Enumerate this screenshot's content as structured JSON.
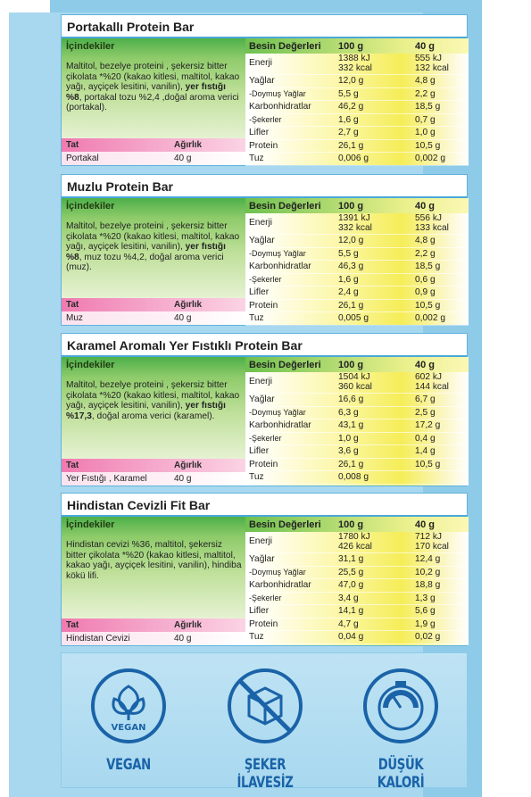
{
  "headers": {
    "nutrition": "Besin Değerleri",
    "g100": "100 g",
    "g40": "40 g",
    "ingredients": "İçindekiler",
    "tat": "Tat",
    "weight": "Ağırlık"
  },
  "products": [
    {
      "title": "Portakallı Protein Bar",
      "ingredients_plain": "Maltitol, bezelye proteini , şekersiz bitter çikolata *%20 (kakao kitlesi, maltitol, kakao yağı, ayçiçek lesitini, vanilin), ",
      "ingredients_bold": "yer fıstığı %8",
      "ingredients_tail": ",  portakal tozu %2,4 ,doğal aroma verici (portakal).",
      "flavor": "Portakal",
      "weight": "40 g",
      "energy": {
        "label": "Enerji",
        "kj100": "1388 kJ",
        "kcal100": "332 kcal",
        "kj40": "555 kJ",
        "kcal40": "132 kcal"
      },
      "rows": [
        {
          "label": "Yağlar",
          "v100": "12,0 g",
          "v40": "4,8 g"
        },
        {
          "label": "-Doymuş Yağlar",
          "v100": "5,5 g",
          "v40": "2,2 g"
        },
        {
          "label": "Karbonhidratlar",
          "v100": "46,2 g",
          "v40": "18,5 g"
        },
        {
          "label": "-Şekerler",
          "v100": "1,6 g",
          "v40": "0,7 g"
        },
        {
          "label": "Lifler",
          "v100": "2,7 g",
          "v40": "1,0 g"
        },
        {
          "label": "Protein",
          "v100": "26,1 g",
          "v40": "10,5 g"
        },
        {
          "label": "Tuz",
          "v100": "0,006 g",
          "v40": "0,002 g"
        }
      ]
    },
    {
      "title": "Muzlu Protein Bar",
      "ingredients_plain": "Maltitol, bezelye proteini , şekersiz bitter çikolata *%20 (kakao kitlesi, maltitol, kakao yağı, ayçiçek lesitini, vanilin), ",
      "ingredients_bold": "yer fıstığı %8",
      "ingredients_tail": ",  muz tozu %4,2, doğal aroma verici (muz).",
      "flavor": "Muz",
      "weight": "40 g",
      "energy": {
        "label": "Enerji",
        "kj100": "1391 kJ",
        "kcal100": "332 kcal",
        "kj40": "556 kJ",
        "kcal40": "133 kcal"
      },
      "rows": [
        {
          "label": "Yağlar",
          "v100": "12,0 g",
          "v40": "4,8 g"
        },
        {
          "label": "-Doymuş Yağlar",
          "v100": "5,5 g",
          "v40": "2,2 g"
        },
        {
          "label": "Karbonhidratlar",
          "v100": "46,3 g",
          "v40": "18,5 g"
        },
        {
          "label": "-Şekerler",
          "v100": "1,6 g",
          "v40": "0,6 g"
        },
        {
          "label": "Lifler",
          "v100": "2,4 g",
          "v40": "0,9 g"
        },
        {
          "label": "Protein",
          "v100": "26,1 g",
          "v40": "10,5 g"
        },
        {
          "label": "Tuz",
          "v100": "0,005 g",
          "v40": "0,002 g"
        }
      ]
    },
    {
      "title": "Karamel Aromalı Yer Fıstıklı Protein Bar",
      "ingredients_plain": "Maltitol, bezelye proteini , şekersiz bitter çikolata *%20 (kakao kitlesi, maltitol, kakao yağı, ayçiçek lesitini, vanilin), ",
      "ingredients_bold": "yer fıstığı %17,3",
      "ingredients_tail": ", doğal aroma verici (karamel).",
      "flavor": "Yer Fıstığı , Karamel",
      "weight": "40 g",
      "energy": {
        "label": "Enerji",
        "kj100": "1504 kJ",
        "kcal100": "360 kcal",
        "kj40": "602 kJ",
        "kcal40": "144 kcal"
      },
      "rows": [
        {
          "label": "Yağlar",
          "v100": "16,6 g",
          "v40": "6,7 g"
        },
        {
          "label": "-Doymuş Yağlar",
          "v100": "6,3 g",
          "v40": "2,5 g"
        },
        {
          "label": "Karbonhidratlar",
          "v100": "43,1 g",
          "v40": "17,2 g"
        },
        {
          "label": "-Şekerler",
          "v100": "1,0 g",
          "v40": "0,4 g"
        },
        {
          "label": "Lifler",
          "v100": "3,6 g",
          "v40": "1,4 g"
        },
        {
          "label": "Protein",
          "v100": "26,1 g",
          "v40": "10,5 g"
        },
        {
          "label": "Tuz",
          "v100": "0,008 g",
          "v40": ""
        }
      ]
    },
    {
      "title": "Hindistan Cevizli Fit Bar",
      "ingredients_plain": "Hindistan cevizi %36, maltitol, şekersiz bitter çikolata *%20 (kakao kitlesi, maltitol, kakao yağı, ayçiçek lesitini, vanilin), hindiba kökü lifi.",
      "ingredients_bold": "",
      "ingredients_tail": "",
      "flavor": "Hindistan Cevizi",
      "weight": "40 g",
      "energy": {
        "label": "Enerji",
        "kj100": "1780 kJ",
        "kcal100": "426 kcal",
        "kj40": "712 kJ",
        "kcal40": "170 kcal"
      },
      "rows": [
        {
          "label": "Yağlar",
          "v100": "31,1 g",
          "v40": "12,4 g"
        },
        {
          "label": "-Doymuş Yağlar",
          "v100": "25,5 g",
          "v40": "10,2 g"
        },
        {
          "label": "Karbonhidratlar",
          "v100": "47,0 g",
          "v40": "18,8 g"
        },
        {
          "label": "-Şekerler",
          "v100": "3,4 g",
          "v40": "1,3 g"
        },
        {
          "label": "Lifler",
          "v100": "14,1 g",
          "v40": "5,6 g"
        },
        {
          "label": "Protein",
          "v100": "4,7 g",
          "v40": "1,9 g"
        },
        {
          "label": "Tuz",
          "v100": "0,04 g",
          "v40": "0,02 g"
        }
      ]
    }
  ],
  "badges": [
    {
      "label": "VEGAN",
      "icon": "vegan-leaf-icon",
      "inner": "VEGAN"
    },
    {
      "label": "ŞEKER İLAVESİZ",
      "icon": "no-sugar-cube-icon"
    },
    {
      "label": "DÜŞÜK KALORİ",
      "icon": "scale-icon"
    }
  ],
  "colors": {
    "frame": "#8ecbe8",
    "badge_text": "#1a63a8",
    "ingredients_green": "#6ec04f",
    "flavor_pink": "#f07ab0",
    "nutrition_yellow": "#f5ed58"
  }
}
